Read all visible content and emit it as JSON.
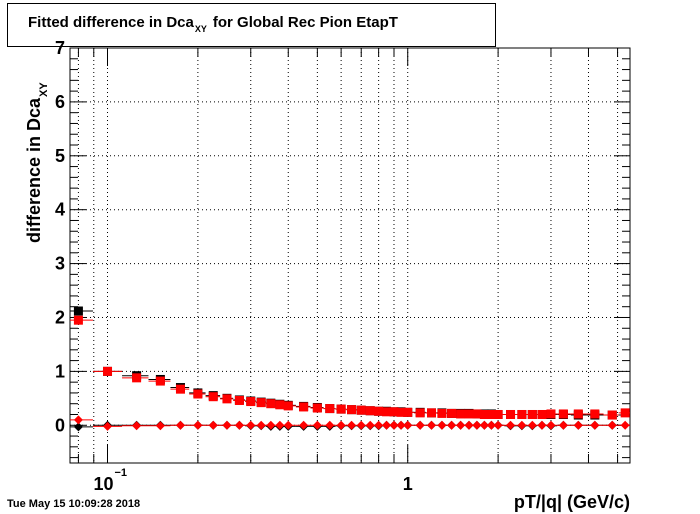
{
  "chart_data": {
    "type": "scatter",
    "title_main": "Fitted difference in Dca",
    "title_sub": "XY",
    "title_rest": "for Global Rec Pion EtapT",
    "ylabel_main": "difference in Dca",
    "ylabel_sub": "XY",
    "xlabel": "pT/|q| (GeV/c)",
    "x_scale": "log",
    "xlim": [
      0.075,
      5.5
    ],
    "ylim": [
      -0.7,
      7.0
    ],
    "grid": true,
    "y_ticks": [
      "0",
      "1",
      "2",
      "3",
      "4",
      "5",
      "6",
      "7"
    ],
    "x_ticks": [
      {
        "base": "10",
        "exp": "−1",
        "value": 0.1
      },
      {
        "base": "1",
        "exp": "",
        "value": 1.0
      }
    ],
    "series": [
      {
        "color": "#000000",
        "marker": "square",
        "x": [
          0.08,
          0.1,
          0.125,
          0.15,
          0.175,
          0.2,
          0.225,
          0.25,
          0.275,
          0.3,
          0.325,
          0.35,
          0.375,
          0.4,
          0.45,
          0.5,
          0.55,
          0.6,
          0.65,
          0.7,
          0.75,
          0.8,
          0.85,
          0.9,
          0.95,
          1.0,
          1.1,
          1.2,
          1.3,
          1.4,
          1.5,
          1.6,
          1.7,
          1.8,
          1.9,
          2.0,
          2.2,
          2.4,
          2.6,
          2.8,
          3.0,
          3.3,
          3.7,
          4.2,
          4.8
        ],
        "y": [
          2.12,
          1.0,
          0.92,
          0.85,
          0.7,
          0.6,
          0.55,
          0.5,
          0.47,
          0.45,
          0.43,
          0.41,
          0.39,
          0.37,
          0.35,
          0.33,
          0.31,
          0.3,
          0.29,
          0.28,
          0.27,
          0.26,
          0.26,
          0.25,
          0.25,
          0.24,
          0.24,
          0.23,
          0.23,
          0.22,
          0.22,
          0.22,
          0.21,
          0.21,
          0.21,
          0.2,
          0.2,
          0.2,
          0.2,
          0.2,
          0.2,
          0.2,
          0.19,
          0.19,
          0.19
        ]
      },
      {
        "color": "#000000",
        "marker": "diamond",
        "x": [
          0.08,
          0.1,
          0.125,
          0.15,
          0.175,
          0.2,
          0.225,
          0.25,
          0.275,
          0.3,
          0.325,
          0.35,
          0.375,
          0.4,
          0.45,
          0.5,
          0.55,
          0.6,
          0.65,
          0.7,
          0.75,
          0.8,
          0.85,
          0.9,
          0.95,
          1.0,
          1.1,
          1.2,
          1.3,
          1.4,
          1.5,
          1.6,
          1.7,
          1.8,
          1.9,
          2.0,
          2.2,
          2.4,
          2.6,
          2.8,
          3.0,
          3.3,
          3.7,
          4.2,
          4.8
        ],
        "y": [
          -0.03,
          0.0,
          0.0,
          0.0,
          0.0,
          0.0,
          0.0,
          0.0,
          0.0,
          -0.01,
          -0.01,
          -0.02,
          -0.02,
          -0.02,
          -0.02,
          -0.02,
          -0.02,
          -0.01,
          -0.01,
          -0.01,
          -0.01,
          -0.01,
          0.0,
          0.0,
          0.0,
          0.0,
          0.0,
          0.0,
          0.0,
          0.0,
          0.0,
          0.0,
          0.0,
          0.0,
          0.0,
          0.0,
          -0.01,
          -0.01,
          -0.01,
          0.0,
          -0.01,
          0.0,
          0.0,
          0.0,
          0.0
        ]
      },
      {
        "color": "#ff0000",
        "marker": "square",
        "x": [
          0.08,
          0.1,
          0.125,
          0.15,
          0.175,
          0.2,
          0.225,
          0.25,
          0.275,
          0.3,
          0.325,
          0.35,
          0.375,
          0.4,
          0.45,
          0.5,
          0.55,
          0.6,
          0.65,
          0.7,
          0.75,
          0.8,
          0.85,
          0.9,
          0.95,
          1.0,
          1.1,
          1.2,
          1.3,
          1.4,
          1.5,
          1.6,
          1.7,
          1.8,
          1.9,
          2.0,
          2.2,
          2.4,
          2.6,
          2.8,
          3.0,
          3.3,
          3.7,
          4.2,
          4.8,
          5.3
        ],
        "y": [
          1.95,
          1.0,
          0.88,
          0.82,
          0.67,
          0.58,
          0.53,
          0.49,
          0.46,
          0.44,
          0.42,
          0.4,
          0.38,
          0.36,
          0.34,
          0.32,
          0.31,
          0.3,
          0.29,
          0.28,
          0.27,
          0.26,
          0.25,
          0.25,
          0.24,
          0.24,
          0.23,
          0.23,
          0.22,
          0.22,
          0.21,
          0.21,
          0.21,
          0.2,
          0.2,
          0.2,
          0.2,
          0.2,
          0.2,
          0.2,
          0.21,
          0.21,
          0.21,
          0.21,
          0.19,
          0.23
        ]
      },
      {
        "color": "#ff0000",
        "marker": "diamond",
        "x": [
          0.08,
          0.1,
          0.125,
          0.15,
          0.175,
          0.2,
          0.225,
          0.25,
          0.275,
          0.3,
          0.325,
          0.35,
          0.375,
          0.4,
          0.45,
          0.5,
          0.55,
          0.6,
          0.65,
          0.7,
          0.75,
          0.8,
          0.85,
          0.9,
          0.95,
          1.0,
          1.1,
          1.2,
          1.3,
          1.4,
          1.5,
          1.6,
          1.7,
          1.8,
          1.9,
          2.0,
          2.2,
          2.4,
          2.6,
          2.8,
          3.0,
          3.3,
          3.7,
          4.2,
          4.8,
          5.3
        ],
        "y": [
          0.1,
          -0.02,
          -0.01,
          -0.01,
          0.0,
          0.0,
          0.0,
          0.0,
          0.0,
          0.0,
          0.0,
          0.0,
          0.0,
          0.0,
          0.0,
          0.0,
          0.0,
          0.0,
          0.0,
          0.0,
          0.0,
          0.0,
          0.0,
          0.0,
          0.0,
          0.0,
          0.0,
          0.0,
          0.0,
          0.0,
          0.0,
          0.0,
          0.0,
          0.0,
          0.0,
          0.0,
          0.0,
          0.0,
          0.0,
          0.0,
          0.0,
          0.0,
          0.0,
          0.0,
          0.0,
          0.0
        ]
      }
    ]
  },
  "footer": {
    "timestamp": "Tue May 15 10:09:28 2018"
  }
}
